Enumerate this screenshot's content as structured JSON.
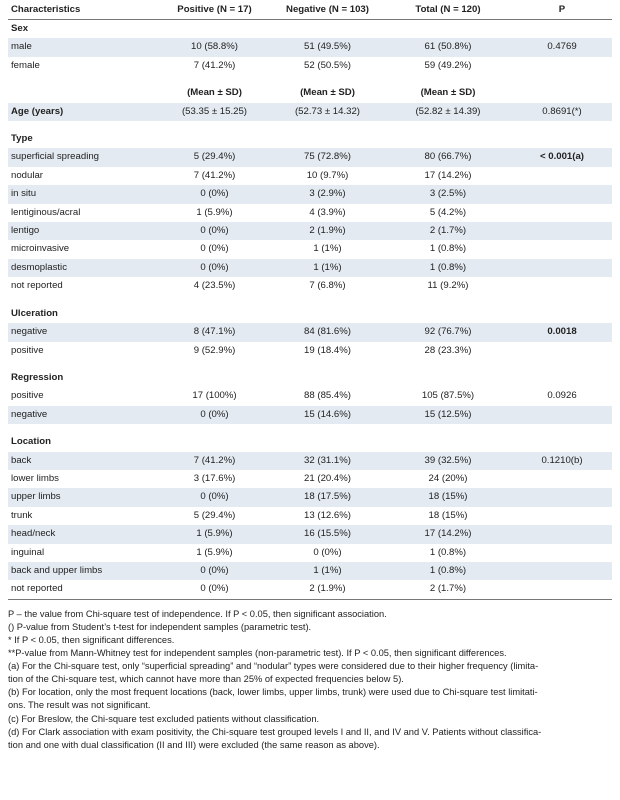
{
  "header": {
    "characteristics": "Characteristics",
    "positive": "Positive (N = 17)",
    "negative": "Negative (N = 103)",
    "total": "Total (N = 120)",
    "p": "P"
  },
  "sex": {
    "title": "Sex",
    "male": {
      "label": "male",
      "pos": "10 (58.8%)",
      "neg": "51 (49.5%)",
      "tot": "61 (50.8%)",
      "p": "0.4769"
    },
    "female": {
      "label": "female",
      "pos": "7 (41.2%)",
      "neg": "52 (50.5%)",
      "tot": "59 (49.2%)"
    }
  },
  "mean_sd": "(Mean ± SD)",
  "age": {
    "label": "Age (years)",
    "pos": "(53.35 ± 15.25)",
    "neg": "(52.73 ± 14.32)",
    "tot": "(52.82 ± 14.39)",
    "p": "0.8691(*)"
  },
  "type": {
    "title": "Type",
    "rows": [
      {
        "label": "superficial spreading",
        "pos": "5 (29.4%)",
        "neg": "75 (72.8%)",
        "tot": "80 (66.7%)",
        "p": "< 0.001(a)"
      },
      {
        "label": "nodular",
        "pos": "7 (41.2%)",
        "neg": "10 (9.7%)",
        "tot": "17 (14.2%)",
        "p": ""
      },
      {
        "label": "in situ",
        "pos": "0 (0%)",
        "neg": "3 (2.9%)",
        "tot": "3 (2.5%)",
        "p": ""
      },
      {
        "label": "lentiginous/acral",
        "pos": "1 (5.9%)",
        "neg": "4 (3.9%)",
        "tot": "5 (4.2%)",
        "p": ""
      },
      {
        "label": "lentigo",
        "pos": "0 (0%)",
        "neg": "2 (1.9%)",
        "tot": "2 (1.7%)",
        "p": ""
      },
      {
        "label": "microinvasive",
        "pos": "0 (0%)",
        "neg": "1 (1%)",
        "tot": "1 (0.8%)",
        "p": ""
      },
      {
        "label": "desmoplastic",
        "pos": "0 (0%)",
        "neg": "1 (1%)",
        "tot": "1 (0.8%)",
        "p": ""
      },
      {
        "label": "not reported",
        "pos": "4 (23.5%)",
        "neg": "7 (6.8%)",
        "tot": "11 (9.2%)",
        "p": ""
      }
    ]
  },
  "ulceration": {
    "title": "Ulceration",
    "rows": [
      {
        "label": "negative",
        "pos": "8 (47.1%)",
        "neg": "84 (81.6%)",
        "tot": "92 (76.7%)",
        "p": "0.0018"
      },
      {
        "label": "positive",
        "pos": "9 (52.9%)",
        "neg": "19 (18.4%)",
        "tot": "28 (23.3%)",
        "p": ""
      }
    ]
  },
  "regression": {
    "title": "Regression",
    "rows": [
      {
        "label": "positive",
        "pos": "17 (100%)",
        "neg": "88 (85.4%)",
        "tot": "105 (87.5%)",
        "p": "0.0926"
      },
      {
        "label": "negative",
        "pos": "0 (0%)",
        "neg": "15 (14.6%)",
        "tot": "15 (12.5%)",
        "p": ""
      }
    ]
  },
  "location": {
    "title": "Location",
    "rows": [
      {
        "label": "back",
        "pos": "7 (41.2%)",
        "neg": "32 (31.1%)",
        "tot": "39 (32.5%)",
        "p": "0.1210(b)"
      },
      {
        "label": "lower limbs",
        "pos": "3 (17.6%)",
        "neg": "21 (20.4%)",
        "tot": "24 (20%)",
        "p": ""
      },
      {
        "label": "upper limbs",
        "pos": "0 (0%)",
        "neg": "18 (17.5%)",
        "tot": "18 (15%)",
        "p": ""
      },
      {
        "label": "trunk",
        "pos": "5 (29.4%)",
        "neg": "13 (12.6%)",
        "tot": "18 (15%)",
        "p": ""
      },
      {
        "label": "head/neck",
        "pos": "1 (5.9%)",
        "neg": "16 (15.5%)",
        "tot": "17 (14.2%)",
        "p": ""
      },
      {
        "label": "inguinal",
        "pos": "1 (5.9%)",
        "neg": "0 (0%)",
        "tot": "1 (0.8%)",
        "p": ""
      },
      {
        "label": "back and upper limbs",
        "pos": "0 (0%)",
        "neg": "1 (1%)",
        "tot": "1 (0.8%)",
        "p": ""
      },
      {
        "label": "not reported",
        "pos": "0 (0%)",
        "neg": "2 (1.9%)",
        "tot": "2 (1.7%)",
        "p": ""
      }
    ]
  },
  "notes": {
    "n1": "P – the value from Chi-square test of independence. If P < 0.05, then significant association.",
    "n2": "() P-value from Student’s t-test for independent samples (parametric test).",
    "n3": "* If P < 0.05, then significant differences.",
    "n4": "**P-value from Mann-Whitney test for independent samples (non-parametric test). If P < 0.05, then significant differences.",
    "n5a": "(a) For the Chi-square test, only “superficial spreading” and “nodular” types were considered due to their higher frequency (limita-",
    "n5b": "tion of the Chi-square test, which cannot have more than 25% of expected frequencies below 5).",
    "n6a": "(b) For location, only the most frequent locations (back, lower limbs, upper limbs, trunk) were used due to Chi-square test limitati-",
    "n6b": "ons. The result was not significant.",
    "n7": "(c) For Breslow, the Chi-square test excluded patients without classification.",
    "n8a": "(d) For Clark association with exam positivity, the Chi-square test grouped levels I and II, and IV and V. Patients without classifica-",
    "n8b": "tion and one with dual classification (II and III) were excluded (the same reason as above)."
  }
}
